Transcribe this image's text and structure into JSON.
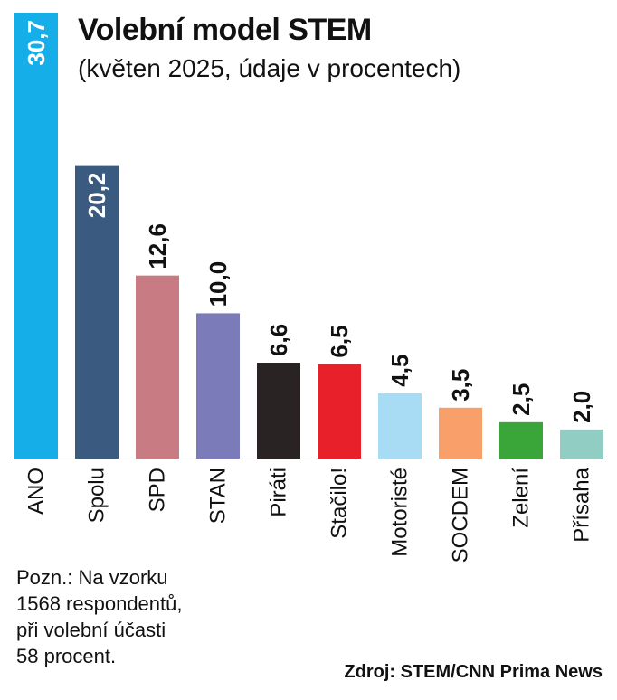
{
  "chart_data": {
    "type": "bar",
    "title": "Volební model STEM",
    "subtitle": "(květen 2025, údaje v procentech)",
    "categories": [
      "ANO",
      "Spolu",
      "SPD",
      "STAN",
      "Piráti",
      "Stačilo!",
      "Motoristé",
      "SOCDEM",
      "Zelení",
      "Přísaha"
    ],
    "values": [
      30.7,
      20.2,
      12.6,
      10.0,
      6.6,
      6.5,
      4.5,
      3.5,
      2.5,
      2.0
    ],
    "labels": [
      "30,7",
      "20,2",
      "12,6",
      "10,0",
      "6,6",
      "6,5",
      "4,5",
      "3,5",
      "2,5",
      "2,0"
    ],
    "colors": [
      "#15aee8",
      "#3a5a80",
      "#c97b84",
      "#7a7bb8",
      "#2a2323",
      "#e8202a",
      "#a8dcf4",
      "#f9a06a",
      "#3aa63a",
      "#92cdc4"
    ],
    "label_colors": [
      "#ffffff",
      "#ffffff",
      "#111111",
      "#111111",
      "#111111",
      "#111111",
      "#111111",
      "#111111",
      "#111111",
      "#111111"
    ],
    "label_inside": [
      true,
      true,
      false,
      false,
      false,
      false,
      false,
      false,
      false,
      false
    ],
    "xlabel": "",
    "ylabel": "",
    "ylim": [
      0,
      30.7
    ]
  },
  "note": {
    "lines": [
      "Pozn.: Na vzorku",
      "1568 respondentů,",
      "při volební účasti",
      "58 procent."
    ]
  },
  "source": "Zdroj: STEM/CNN Prima News"
}
